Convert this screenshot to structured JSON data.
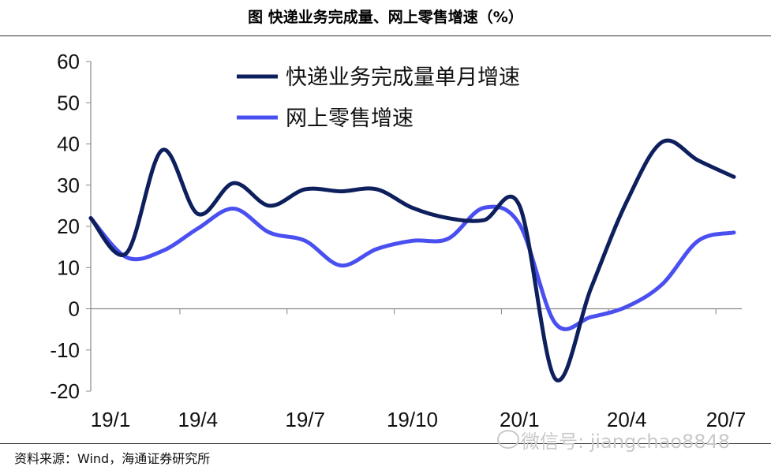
{
  "figure": {
    "title": "图  快递业务完成量、网上零售增速（%）",
    "source": "资料来源：Wind，海通证券研究所",
    "watermark": "微信号: jiangchao8848"
  },
  "chart_data": {
    "type": "line",
    "title": "",
    "xlabel": "",
    "ylabel": "",
    "ylim": [
      -20,
      60
    ],
    "yticks": [
      -20,
      -10,
      0,
      10,
      20,
      30,
      40,
      50,
      60
    ],
    "x_tick_labels": [
      "19/1",
      "19/4",
      "19/7",
      "19/10",
      "20/1",
      "20/4",
      "20/7"
    ],
    "months": [
      "19/1",
      "19/2",
      "19/3",
      "19/4",
      "19/5",
      "19/6",
      "19/7",
      "19/8",
      "19/9",
      "19/10",
      "19/11",
      "19/12",
      "20/1",
      "20/2",
      "20/3",
      "20/4",
      "20/5",
      "20/6",
      "20/7"
    ],
    "legend_position": "top",
    "grid": false,
    "series": [
      {
        "name": "快递业务完成量单月增速",
        "color": "#0d1f5c",
        "values": [
          22,
          13.5,
          38.5,
          23,
          30.5,
          25,
          29,
          28.5,
          29,
          24.5,
          22,
          21.5,
          25,
          -17,
          5,
          26,
          40.5,
          36,
          32
        ]
      },
      {
        "name": "网上零售增速",
        "color": "#4a4ff0",
        "values": [
          22,
          12.5,
          14,
          19.5,
          24.3,
          18.5,
          16.5,
          10.5,
          14.5,
          16.5,
          17,
          24.5,
          20.5,
          -3.5,
          -2,
          0.5,
          6,
          16.5,
          18.5
        ]
      }
    ]
  }
}
